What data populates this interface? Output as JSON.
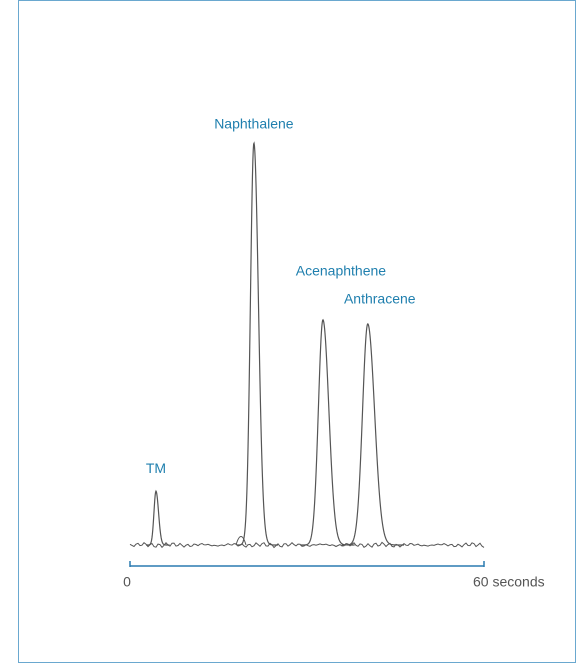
{
  "chart_data": {
    "type": "chromatogram",
    "peaks": [
      {
        "label": "TM",
        "x": 4.4,
        "height": 13.4
      },
      {
        "label": "Naphthalene",
        "x": 21.0,
        "height": 100
      },
      {
        "label": "Acenaphthene",
        "x": 32.7,
        "height": 56
      },
      {
        "label": "Anthracene",
        "x": 40.3,
        "height": 55
      }
    ],
    "xlim": [
      0,
      60
    ],
    "xticks": [
      0,
      {
        "value": 60,
        "label": "60 seconds"
      }
    ],
    "ylim": [
      0,
      100
    ],
    "color": "#555555",
    "label_color": "#1f7fae",
    "axis_color": "#2a7ab0"
  }
}
